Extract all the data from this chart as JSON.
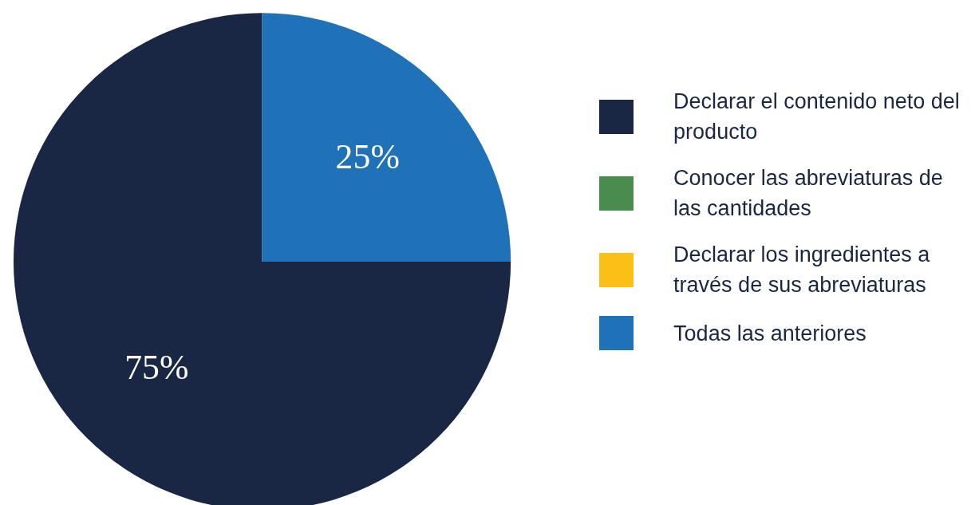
{
  "chart_data": {
    "type": "pie",
    "categories": [
      "Declarar el contenido neto del producto",
      "Conocer las abreviaturas de las cantidades",
      "Declarar los ingredientes a través de sus abreviaturas",
      "Todas las anteriores"
    ],
    "values": [
      75,
      0,
      0,
      25
    ],
    "colors": [
      "#1a2744",
      "#4a8c4e",
      "#fbbf16",
      "#1f71b8"
    ],
    "value_labels": [
      "75%",
      null,
      null,
      "25%"
    ],
    "legend": "right"
  }
}
